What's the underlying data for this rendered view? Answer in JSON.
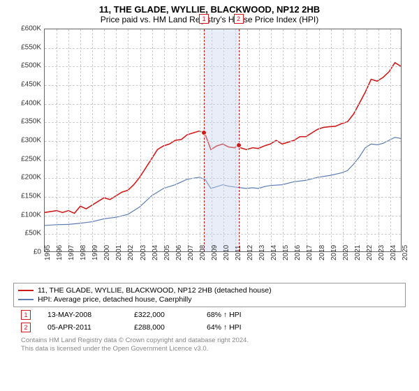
{
  "title": "11, THE GLADE, WYLLIE, BLACKWOOD, NP12 2HB",
  "subtitle": "Price paid vs. HM Land Registry's House Price Index (HPI)",
  "chart": {
    "type": "line",
    "ylim": [
      0,
      600000
    ],
    "ytick_step": 50000,
    "ytick_labels": [
      "£0",
      "£50K",
      "£100K",
      "£150K",
      "£200K",
      "£250K",
      "£300K",
      "£350K",
      "£400K",
      "£450K",
      "£500K",
      "£550K",
      "£600K"
    ],
    "xlim": [
      1995,
      2025
    ],
    "xticks": [
      1995,
      1996,
      1997,
      1998,
      1999,
      2000,
      2001,
      2002,
      2003,
      2004,
      2005,
      2006,
      2007,
      2008,
      2009,
      2010,
      2011,
      2012,
      2013,
      2014,
      2015,
      2016,
      2017,
      2018,
      2019,
      2020,
      2021,
      2022,
      2023,
      2024,
      2025
    ],
    "background_color": "#ffffff",
    "grid_color": "#cccccc",
    "series": [
      {
        "name": "property",
        "color": "#d11919",
        "width": 1.6,
        "points": [
          [
            1995,
            105000
          ],
          [
            1996,
            110000
          ],
          [
            1996.5,
            105000
          ],
          [
            1997,
            110000
          ],
          [
            1997.5,
            103000
          ],
          [
            1998,
            122000
          ],
          [
            1998.5,
            115000
          ],
          [
            1999,
            125000
          ],
          [
            1999.5,
            135000
          ],
          [
            2000,
            145000
          ],
          [
            2000.5,
            140000
          ],
          [
            2001,
            150000
          ],
          [
            2001.5,
            160000
          ],
          [
            2002,
            165000
          ],
          [
            2002.5,
            180000
          ],
          [
            2003,
            200000
          ],
          [
            2003.5,
            225000
          ],
          [
            2004,
            250000
          ],
          [
            2004.5,
            275000
          ],
          [
            2005,
            285000
          ],
          [
            2005.5,
            290000
          ],
          [
            2006,
            300000
          ],
          [
            2006.5,
            302000
          ],
          [
            2007,
            315000
          ],
          [
            2007.5,
            320000
          ],
          [
            2008,
            325000
          ],
          [
            2008.37,
            322000
          ],
          [
            2008.5,
            318000
          ],
          [
            2009,
            275000
          ],
          [
            2009.5,
            285000
          ],
          [
            2010,
            290000
          ],
          [
            2010.5,
            282000
          ],
          [
            2011,
            280000
          ],
          [
            2011.26,
            288000
          ],
          [
            2011.5,
            280000
          ],
          [
            2012,
            275000
          ],
          [
            2012.5,
            280000
          ],
          [
            2013,
            278000
          ],
          [
            2013.5,
            285000
          ],
          [
            2014,
            290000
          ],
          [
            2014.5,
            300000
          ],
          [
            2015,
            290000
          ],
          [
            2015.5,
            295000
          ],
          [
            2016,
            300000
          ],
          [
            2016.5,
            310000
          ],
          [
            2017,
            310000
          ],
          [
            2017.5,
            320000
          ],
          [
            2018,
            330000
          ],
          [
            2018.5,
            335000
          ],
          [
            2019,
            337000
          ],
          [
            2019.5,
            338000
          ],
          [
            2020,
            345000
          ],
          [
            2020.5,
            350000
          ],
          [
            2021,
            370000
          ],
          [
            2021.5,
            400000
          ],
          [
            2022,
            430000
          ],
          [
            2022.5,
            465000
          ],
          [
            2023,
            460000
          ],
          [
            2023.5,
            470000
          ],
          [
            2024,
            485000
          ],
          [
            2024.5,
            510000
          ],
          [
            2025,
            500000
          ]
        ]
      },
      {
        "name": "hpi",
        "color": "#5b7db4",
        "width": 1.2,
        "points": [
          [
            1995,
            70000
          ],
          [
            1996,
            72000
          ],
          [
            1997,
            73000
          ],
          [
            1998,
            76000
          ],
          [
            1999,
            80000
          ],
          [
            2000,
            88000
          ],
          [
            2001,
            92000
          ],
          [
            2002,
            100000
          ],
          [
            2003,
            120000
          ],
          [
            2004,
            150000
          ],
          [
            2005,
            170000
          ],
          [
            2006,
            180000
          ],
          [
            2007,
            195000
          ],
          [
            2008,
            200000
          ],
          [
            2008.5,
            195000
          ],
          [
            2009,
            170000
          ],
          [
            2009.5,
            175000
          ],
          [
            2010,
            180000
          ],
          [
            2010.5,
            176000
          ],
          [
            2011,
            174000
          ],
          [
            2011.5,
            172000
          ],
          [
            2012,
            170000
          ],
          [
            2012.5,
            172000
          ],
          [
            2013,
            170000
          ],
          [
            2013.5,
            175000
          ],
          [
            2014,
            178000
          ],
          [
            2015,
            180000
          ],
          [
            2016,
            188000
          ],
          [
            2017,
            192000
          ],
          [
            2018,
            200000
          ],
          [
            2019,
            205000
          ],
          [
            2020,
            212000
          ],
          [
            2020.5,
            218000
          ],
          [
            2021,
            235000
          ],
          [
            2021.5,
            255000
          ],
          [
            2022,
            280000
          ],
          [
            2022.5,
            290000
          ],
          [
            2023,
            288000
          ],
          [
            2023.5,
            292000
          ],
          [
            2024,
            300000
          ],
          [
            2024.5,
            308000
          ],
          [
            2025,
            305000
          ]
        ]
      }
    ],
    "sale_markers": [
      {
        "n": "1",
        "x": 2008.37,
        "y": 322000,
        "color": "#d11919"
      },
      {
        "n": "2",
        "x": 2011.26,
        "y": 288000,
        "color": "#d11919"
      }
    ],
    "shade_band": {
      "from": 2008.37,
      "to": 2011.26
    }
  },
  "legend": {
    "items": [
      {
        "color": "#d11919",
        "label": "11, THE GLADE, WYLLIE, BLACKWOOD, NP12 2HB (detached house)"
      },
      {
        "color": "#5b7db4",
        "label": "HPI: Average price, detached house, Caerphilly"
      }
    ]
  },
  "sales": [
    {
      "n": "1",
      "color": "#d11919",
      "date": "13-MAY-2008",
      "price": "£322,000",
      "pct": "68% ↑ HPI"
    },
    {
      "n": "2",
      "color": "#d11919",
      "date": "05-APR-2011",
      "price": "£288,000",
      "pct": "64% ↑ HPI"
    }
  ],
  "attribution": {
    "line1": "Contains HM Land Registry data © Crown copyright and database right 2024.",
    "line2": "This data is licensed under the Open Government Licence v3.0."
  }
}
